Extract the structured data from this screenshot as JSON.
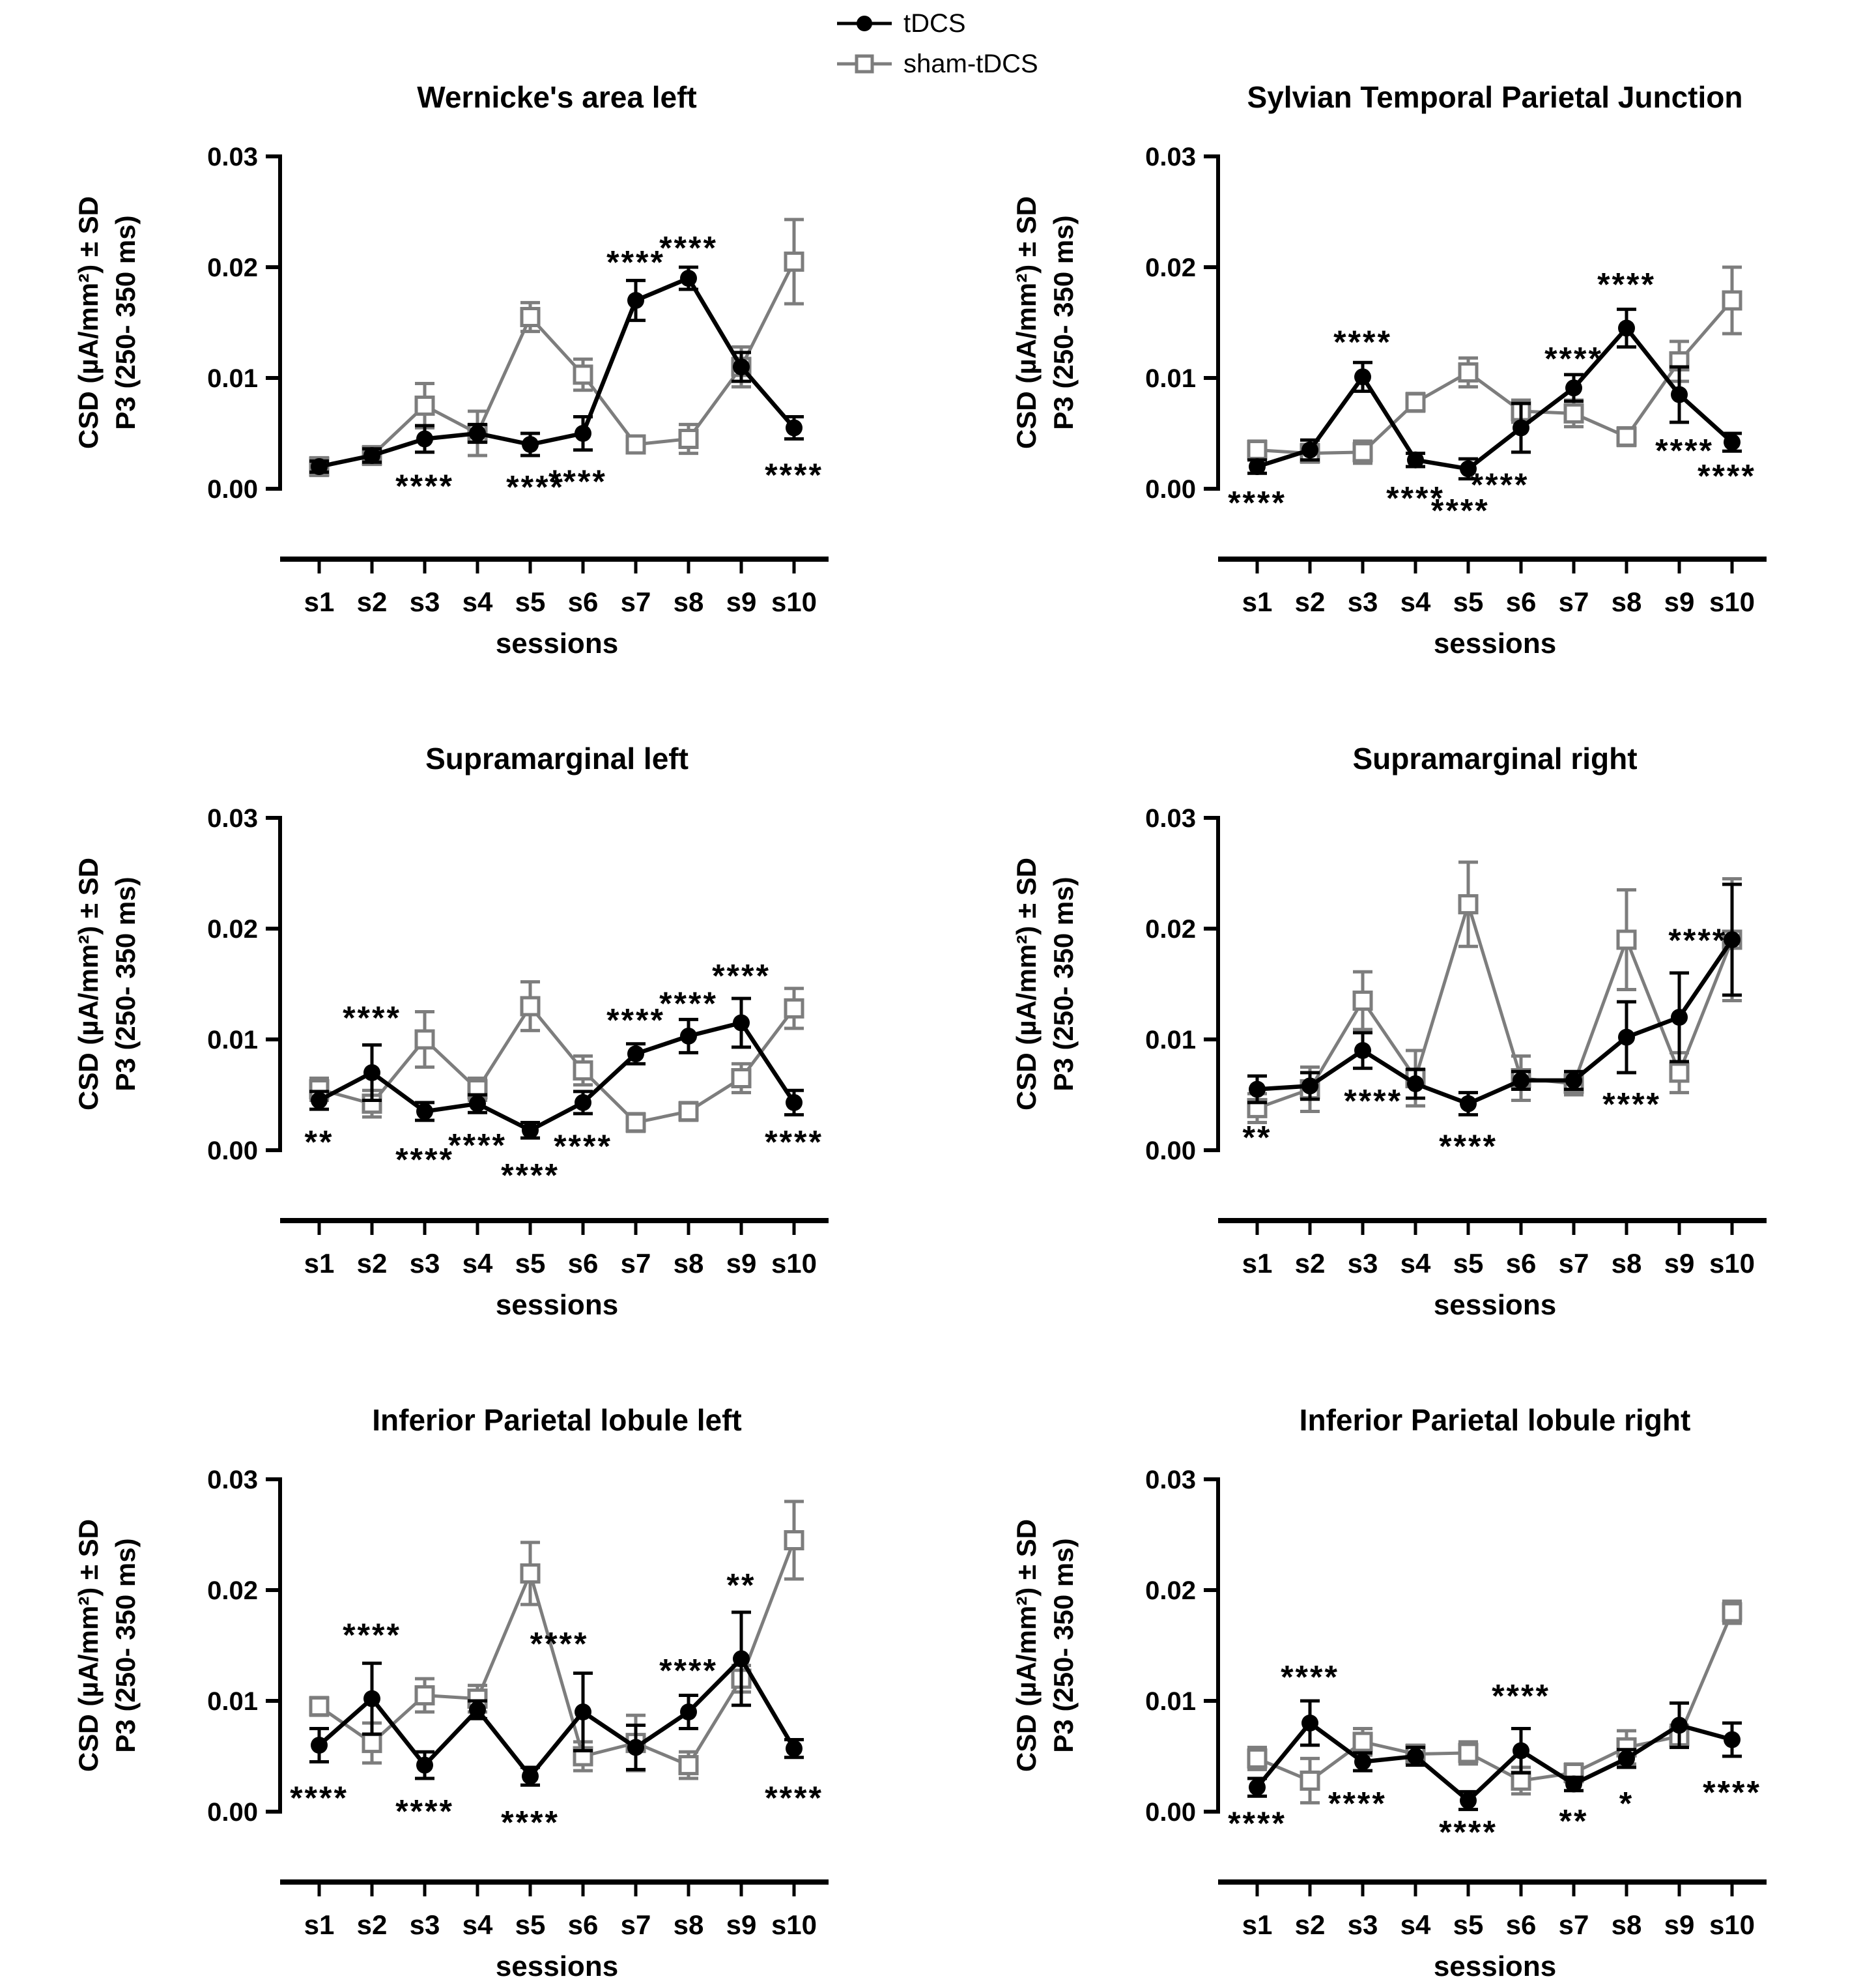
{
  "page": {
    "background": "#ffffff"
  },
  "colors": {
    "tdcs": "#000000",
    "sham": "#7d7d7d",
    "text": "#000000"
  },
  "legend": {
    "items": [
      {
        "label": "tDCS",
        "marker": "filled-circle",
        "color": "#000000"
      },
      {
        "label": "sham-tDCS",
        "marker": "open-square",
        "color": "#7d7d7d"
      }
    ]
  },
  "axis": {
    "ylabel_line1": "CSD (µA/mm²) ± SD",
    "ylabel_line2": "P3 (250- 350 ms)",
    "xlabel": "sessions",
    "ymax": 0.03,
    "yticks": [
      {
        "label": "0.00",
        "value": 0
      },
      {
        "label": "0.01",
        "value": 0.01
      },
      {
        "label": "0.02",
        "value": 0.02
      },
      {
        "label": "0.03",
        "value": 0.03
      }
    ]
  },
  "chart_data": [
    {
      "type": "line",
      "title": "Wernicke's area left",
      "categories": [
        "s1",
        "s2",
        "s3",
        "s4",
        "s5",
        "s6",
        "s7",
        "s8",
        "s9",
        "s10"
      ],
      "ylim": [
        0,
        0.03
      ],
      "series": [
        {
          "name": "tDCS",
          "values": [
            0.002,
            0.003,
            0.0045,
            0.005,
            0.004,
            0.005,
            0.017,
            0.019,
            0.011,
            0.0055
          ],
          "sd": [
            0.0005,
            0.0006,
            0.0012,
            0.0008,
            0.001,
            0.0015,
            0.0018,
            0.001,
            0.0013,
            0.001
          ]
        },
        {
          "name": "sham-tDCS",
          "values": [
            0.002,
            0.003,
            0.0075,
            0.005,
            0.0155,
            0.0103,
            0.004,
            0.0045,
            0.011,
            0.0205
          ],
          "sd": [
            0.0008,
            0.0008,
            0.002,
            0.002,
            0.0013,
            0.0014,
            0.0007,
            0.0013,
            0.0018,
            0.0038
          ]
        }
      ],
      "annotations": [
        {
          "s": 7,
          "v": 0.0205,
          "text": "****"
        },
        {
          "s": 8,
          "v": 0.0218,
          "text": "****"
        },
        {
          "s": 3,
          "v": 0.0003,
          "text": "****"
        },
        {
          "s": 5.1,
          "v": 0.0002,
          "text": "****"
        },
        {
          "s": 5.9,
          "v": 0.0007,
          "text": "****"
        },
        {
          "s": 10,
          "v": 0.0013,
          "text": "****"
        }
      ]
    },
    {
      "type": "line",
      "title": "Sylvian Temporal Parietal Junction",
      "categories": [
        "s1",
        "s2",
        "s3",
        "s4",
        "s5",
        "s6",
        "s7",
        "s8",
        "s9",
        "s10"
      ],
      "ylim": [
        0,
        0.03
      ],
      "series": [
        {
          "name": "tDCS",
          "values": [
            0.002,
            0.0035,
            0.0101,
            0.0026,
            0.0018,
            0.0055,
            0.0091,
            0.0145,
            0.0085,
            0.0042
          ],
          "sd": [
            0.0006,
            0.0009,
            0.0013,
            0.0006,
            0.0009,
            0.0022,
            0.0012,
            0.0017,
            0.0025,
            0.0008
          ]
        },
        {
          "name": "sham-tDCS",
          "values": [
            0.0035,
            0.0032,
            0.0033,
            0.0078,
            0.0105,
            0.007,
            0.0068,
            0.0047,
            0.0115,
            0.017
          ],
          "sd": [
            0.0008,
            0.0008,
            0.001,
            0.0008,
            0.0013,
            0.001,
            0.0012,
            0.0008,
            0.0018,
            0.003
          ]
        }
      ],
      "annotations": [
        {
          "s": 1,
          "v": -0.0012,
          "text": "****"
        },
        {
          "s": 3,
          "v": 0.0133,
          "text": "****"
        },
        {
          "s": 4,
          "v": -0.0008,
          "text": "****"
        },
        {
          "s": 4.85,
          "v": -0.0019,
          "text": "****"
        },
        {
          "s": 5.6,
          "v": 0.0004,
          "text": "****"
        },
        {
          "s": 7,
          "v": 0.0118,
          "text": "****"
        },
        {
          "s": 8,
          "v": 0.0185,
          "text": "****"
        },
        {
          "s": 9.1,
          "v": 0.0035,
          "text": "****"
        },
        {
          "s": 9.9,
          "v": 0.0012,
          "text": "****"
        }
      ]
    },
    {
      "type": "line",
      "title": "Supramarginal left",
      "categories": [
        "s1",
        "s2",
        "s3",
        "s4",
        "s5",
        "s6",
        "s7",
        "s8",
        "s9",
        "s10"
      ],
      "ylim": [
        0,
        0.03
      ],
      "series": [
        {
          "name": "tDCS",
          "values": [
            0.0045,
            0.007,
            0.0035,
            0.0042,
            0.0018,
            0.0043,
            0.0087,
            0.0103,
            0.0115,
            0.0043
          ],
          "sd": [
            0.0008,
            0.0025,
            0.0008,
            0.0008,
            0.0007,
            0.001,
            0.0009,
            0.0015,
            0.0022,
            0.0011
          ]
        },
        {
          "name": "sham-tDCS",
          "values": [
            0.0055,
            0.0042,
            0.01,
            0.0055,
            0.013,
            0.0072,
            0.0025,
            0.0035,
            0.0065,
            0.0128
          ],
          "sd": [
            0.001,
            0.0012,
            0.0025,
            0.001,
            0.0022,
            0.0013,
            0.0008,
            0.0008,
            0.0013,
            0.0018
          ]
        }
      ],
      "annotations": [
        {
          "s": 1,
          "v": 0.0008,
          "text": "**"
        },
        {
          "s": 2,
          "v": 0.012,
          "text": "****"
        },
        {
          "s": 3,
          "v": -0.0008,
          "text": "****"
        },
        {
          "s": 4,
          "v": 0.0005,
          "text": "****"
        },
        {
          "s": 5,
          "v": -0.0022,
          "text": "****"
        },
        {
          "s": 6,
          "v": 0.0004,
          "text": "****"
        },
        {
          "s": 7,
          "v": 0.0118,
          "text": "****"
        },
        {
          "s": 8,
          "v": 0.0133,
          "text": "****"
        },
        {
          "s": 9,
          "v": 0.0158,
          "text": "****"
        },
        {
          "s": 10,
          "v": 0.0008,
          "text": "****"
        }
      ]
    },
    {
      "type": "line",
      "title": "Supramarginal right",
      "categories": [
        "s1",
        "s2",
        "s3",
        "s4",
        "s5",
        "s6",
        "s7",
        "s8",
        "s9",
        "s10"
      ],
      "ylim": [
        0,
        0.03
      ],
      "series": [
        {
          "name": "tDCS",
          "values": [
            0.0055,
            0.0058,
            0.009,
            0.006,
            0.0042,
            0.0063,
            0.0063,
            0.0102,
            0.012,
            0.019
          ],
          "sd": [
            0.0012,
            0.0012,
            0.0016,
            0.0013,
            0.001,
            0.0008,
            0.0008,
            0.0032,
            0.004,
            0.005
          ]
        },
        {
          "name": "sham-tDCS",
          "values": [
            0.0038,
            0.0055,
            0.0135,
            0.0065,
            0.0222,
            0.0065,
            0.006,
            0.019,
            0.007,
            0.019
          ],
          "sd": [
            0.0013,
            0.002,
            0.0026,
            0.0025,
            0.0038,
            0.002,
            0.001,
            0.0045,
            0.0018,
            0.0055
          ]
        }
      ],
      "annotations": [
        {
          "s": 1,
          "v": 0.0012,
          "text": "**"
        },
        {
          "s": 3.2,
          "v": 0.0045,
          "text": "****"
        },
        {
          "s": 5,
          "v": 0.0004,
          "text": "****"
        },
        {
          "s": 8.1,
          "v": 0.0042,
          "text": "****"
        },
        {
          "s": 9.35,
          "v": 0.019,
          "text": "****"
        }
      ]
    },
    {
      "type": "line",
      "title": "Inferior Parietal lobule left",
      "categories": [
        "s1",
        "s2",
        "s3",
        "s4",
        "s5",
        "s6",
        "s7",
        "s8",
        "s9",
        "s10"
      ],
      "ylim": [
        0,
        0.03
      ],
      "series": [
        {
          "name": "tDCS",
          "values": [
            0.006,
            0.0102,
            0.0042,
            0.0092,
            0.0032,
            0.009,
            0.0058,
            0.009,
            0.0138,
            0.0057
          ],
          "sd": [
            0.0015,
            0.0032,
            0.0012,
            0.0008,
            0.0008,
            0.0035,
            0.002,
            0.0015,
            0.0042,
            0.0008
          ]
        },
        {
          "name": "sham-tDCS",
          "values": [
            0.0095,
            0.0062,
            0.0105,
            0.0102,
            0.0215,
            0.005,
            0.0062,
            0.0042,
            0.012,
            0.0245
          ],
          "sd": [
            0.0008,
            0.0018,
            0.0015,
            0.0012,
            0.0028,
            0.0013,
            0.0025,
            0.0012,
            0.0012,
            0.0035
          ]
        }
      ],
      "annotations": [
        {
          "s": 1,
          "v": 0.0013,
          "text": "****"
        },
        {
          "s": 2,
          "v": 0.016,
          "text": "****"
        },
        {
          "s": 3,
          "v": 0.0001,
          "text": "****"
        },
        {
          "s": 5.55,
          "v": 0.0152,
          "text": "****"
        },
        {
          "s": 5,
          "v": -0.0009,
          "text": "****"
        },
        {
          "s": 8,
          "v": 0.0128,
          "text": "****"
        },
        {
          "s": 9,
          "v": 0.0205,
          "text": "**"
        },
        {
          "s": 10,
          "v": 0.0013,
          "text": "****"
        }
      ]
    },
    {
      "type": "line",
      "title": "Inferior Parietal lobule right",
      "categories": [
        "s1",
        "s2",
        "s3",
        "s4",
        "s5",
        "s6",
        "s7",
        "s8",
        "s9",
        "s10"
      ],
      "ylim": [
        0,
        0.03
      ],
      "series": [
        {
          "name": "tDCS",
          "values": [
            0.0022,
            0.008,
            0.0045,
            0.005,
            0.001,
            0.0055,
            0.0025,
            0.0048,
            0.0078,
            0.0065
          ],
          "sd": [
            0.0008,
            0.002,
            0.0008,
            0.0008,
            0.0008,
            0.002,
            0.0006,
            0.0008,
            0.002,
            0.0015
          ]
        },
        {
          "name": "sham-tDCS",
          "values": [
            0.0048,
            0.0028,
            0.0063,
            0.0052,
            0.0053,
            0.0028,
            0.0035,
            0.0058,
            0.0068,
            0.018
          ],
          "sd": [
            0.001,
            0.002,
            0.0012,
            0.0008,
            0.001,
            0.0012,
            0.0008,
            0.0015,
            0.001,
            0.001
          ]
        }
      ],
      "annotations": [
        {
          "s": 1,
          "v": -0.001,
          "text": "****"
        },
        {
          "s": 2,
          "v": 0.0122,
          "text": "****"
        },
        {
          "s": 2.9,
          "v": 0.0008,
          "text": "****"
        },
        {
          "s": 5,
          "v": -0.0018,
          "text": "****"
        },
        {
          "s": 6,
          "v": 0.0105,
          "text": "****"
        },
        {
          "s": 7,
          "v": -0.0008,
          "text": "**"
        },
        {
          "s": 8,
          "v": 0.0008,
          "text": "*"
        },
        {
          "s": 10,
          "v": 0.0018,
          "text": "****"
        }
      ]
    }
  ]
}
